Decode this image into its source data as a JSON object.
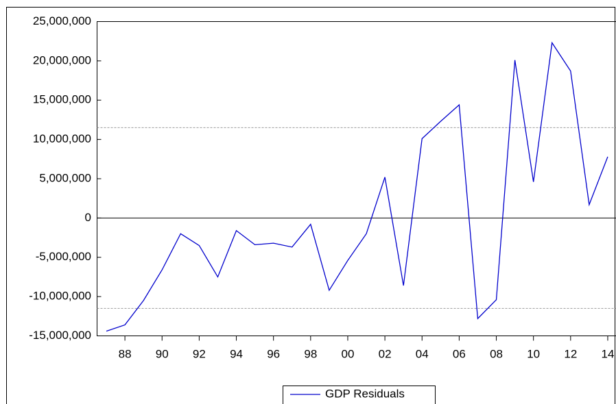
{
  "chart_data": {
    "type": "line",
    "x": [
      1987,
      1988,
      1989,
      1990,
      1991,
      1992,
      1993,
      1994,
      1995,
      1996,
      1997,
      1998,
      1999,
      2000,
      2001,
      2002,
      2003,
      2004,
      2005,
      2006,
      2007,
      2008,
      2009,
      2010,
      2011,
      2012,
      2013,
      2014
    ],
    "series": [
      {
        "name": "GDP Residuals",
        "color": "#0000cc",
        "values": [
          -14400000,
          -13600000,
          -10500000,
          -6600000,
          -2000000,
          -3500000,
          -7500000,
          -1600000,
          -3400000,
          -3200000,
          -3700000,
          -800000,
          -9200000,
          -5400000,
          -2000000,
          5200000,
          -8600000,
          10100000,
          12300000,
          14400000,
          -12800000,
          -10400000,
          20100000,
          4600000,
          22300000,
          18700000,
          1700000,
          7800000
        ]
      }
    ],
    "xlim": [
      1986.5,
      2014.5
    ],
    "xticks": [
      {
        "value": 1988,
        "label": "88"
      },
      {
        "value": 1990,
        "label": "90"
      },
      {
        "value": 1992,
        "label": "92"
      },
      {
        "value": 1994,
        "label": "94"
      },
      {
        "value": 1996,
        "label": "96"
      },
      {
        "value": 1998,
        "label": "98"
      },
      {
        "value": 2000,
        "label": "00"
      },
      {
        "value": 2002,
        "label": "02"
      },
      {
        "value": 2004,
        "label": "04"
      },
      {
        "value": 2006,
        "label": "06"
      },
      {
        "value": 2008,
        "label": "08"
      },
      {
        "value": 2010,
        "label": "10"
      },
      {
        "value": 2012,
        "label": "12"
      },
      {
        "value": 2014,
        "label": "14"
      }
    ],
    "ylim": [
      -15000000,
      25000000
    ],
    "yticks": [
      {
        "value": -15000000,
        "label": "-15,000,000"
      },
      {
        "value": -10000000,
        "label": "-10,000,000"
      },
      {
        "value": -5000000,
        "label": "-5,000,000"
      },
      0,
      {
        "value": 5000000,
        "label": "5,000,000"
      },
      {
        "value": 10000000,
        "label": "10,000,000"
      },
      {
        "value": 15000000,
        "label": "15,000,000"
      },
      {
        "value": 20000000,
        "label": "20,000,000"
      },
      {
        "value": 25000000,
        "label": "25,000,000"
      }
    ],
    "zero_line": 0,
    "reference_lines": [
      -11500000,
      11500000
    ],
    "reference_color": "#999999"
  }
}
